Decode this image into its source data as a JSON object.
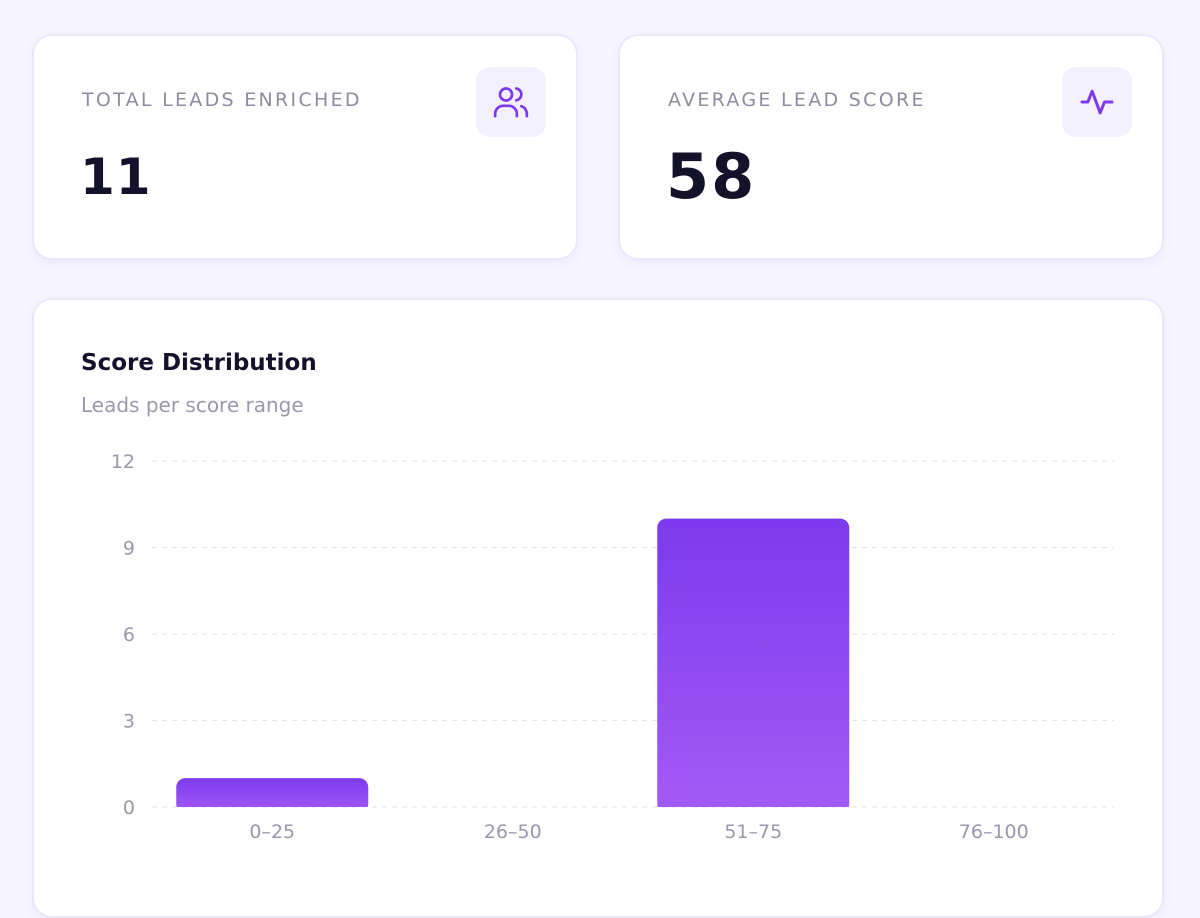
{
  "stats": {
    "total_leads": {
      "label": "TOTAL LEADS ENRICHED",
      "value": "11",
      "icon": "users-icon"
    },
    "average_score": {
      "label": "AVERAGE LEAD SCORE",
      "value": "58",
      "icon": "activity-icon"
    }
  },
  "colors": {
    "accent": "#7c3aed",
    "bar_top": "#7c3aed",
    "bar_bottom": "#a45af5"
  },
  "chart": {
    "title": "Score Distribution",
    "subtitle": "Leads per score range"
  },
  "chart_data": {
    "type": "bar",
    "title": "Score Distribution",
    "subtitle": "Leads per score range",
    "xlabel": "",
    "ylabel": "",
    "categories": [
      "0–25",
      "26–50",
      "51–75",
      "76–100"
    ],
    "values": [
      1,
      0,
      10,
      0
    ],
    "ylim": [
      0,
      12
    ],
    "yticks": [
      0,
      3,
      6,
      9,
      12
    ],
    "grid": true
  }
}
